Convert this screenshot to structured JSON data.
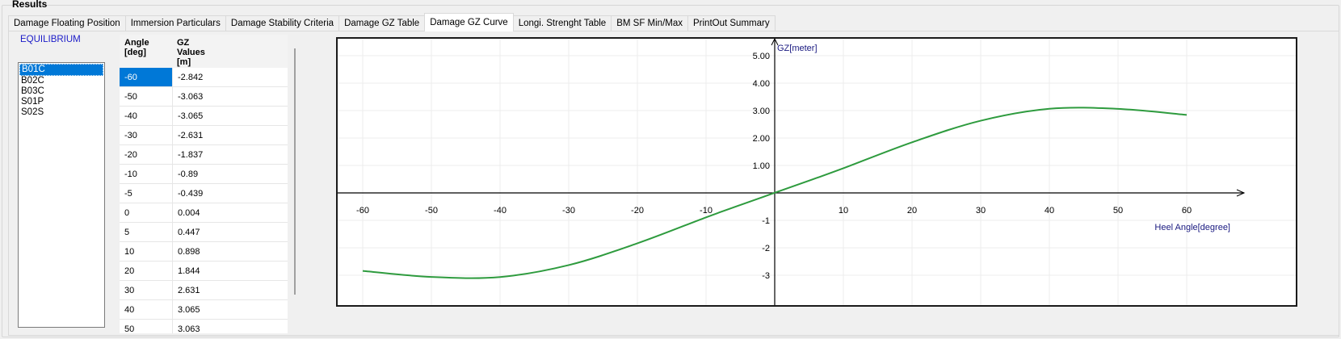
{
  "group_title": "Results",
  "tabs": [
    {
      "label": "Damage Floating Position",
      "active": false
    },
    {
      "label": "Immersion Particulars",
      "active": false
    },
    {
      "label": "Damage Stability Criteria",
      "active": false
    },
    {
      "label": "Damage GZ Table",
      "active": false
    },
    {
      "label": "Damage GZ Curve",
      "active": true
    },
    {
      "label": "Longi. Strenght Table",
      "active": false
    },
    {
      "label": "BM SF Min/Max",
      "active": false
    },
    {
      "label": "PrintOut Summary",
      "active": false
    }
  ],
  "equilibrium_label": "EQUILIBRIUM",
  "cases": [
    {
      "label": "B01C",
      "selected": true
    },
    {
      "label": "B02C",
      "selected": false
    },
    {
      "label": "B03C",
      "selected": false
    },
    {
      "label": "S01P",
      "selected": false
    },
    {
      "label": "S02S",
      "selected": false
    }
  ],
  "table": {
    "col_angle": "Angle\n[deg]",
    "col_gz": "GZ\nValues\n[m]",
    "rows": [
      {
        "angle": "-60",
        "gz": "-2.842"
      },
      {
        "angle": "-50",
        "gz": "-3.063"
      },
      {
        "angle": "-40",
        "gz": "-3.065"
      },
      {
        "angle": "-30",
        "gz": "-2.631"
      },
      {
        "angle": "-20",
        "gz": "-1.837"
      },
      {
        "angle": "-10",
        "gz": "-0.89"
      },
      {
        "angle": "-5",
        "gz": "-0.439"
      },
      {
        "angle": "0",
        "gz": "0.004"
      },
      {
        "angle": "5",
        "gz": "0.447"
      },
      {
        "angle": "10",
        "gz": "0.898"
      },
      {
        "angle": "20",
        "gz": "1.844"
      },
      {
        "angle": "30",
        "gz": "2.631"
      },
      {
        "angle": "40",
        "gz": "3.065"
      },
      {
        "angle": "50",
        "gz": "3.063"
      }
    ]
  },
  "chart_data": {
    "type": "line",
    "xlabel": "Heel Angle[degree]",
    "ylabel": "GZ[meter]",
    "xlim": [
      -60,
      60
    ],
    "ylim": [
      -3,
      5
    ],
    "x_ticks": [
      "-60",
      "-50",
      "-40",
      "-30",
      "-20",
      "-10",
      "10",
      "20",
      "30",
      "40",
      "50",
      "60"
    ],
    "y_ticks": [
      "5.00",
      "4.00",
      "3.00",
      "2.00",
      "1.00",
      "-1",
      "-2",
      "-3"
    ],
    "grid": true,
    "line_color": "#2e9b3e",
    "series": [
      {
        "x": [
          -60,
          -50,
          -40,
          -30,
          -20,
          -10,
          -5,
          0,
          5,
          10,
          20,
          30,
          40,
          50,
          60
        ],
        "y": [
          -2.842,
          -3.063,
          -3.065,
          -2.631,
          -1.837,
          -0.89,
          -0.439,
          0.004,
          0.447,
          0.898,
          1.844,
          2.631,
          3.065,
          3.063,
          2.842
        ]
      }
    ]
  }
}
